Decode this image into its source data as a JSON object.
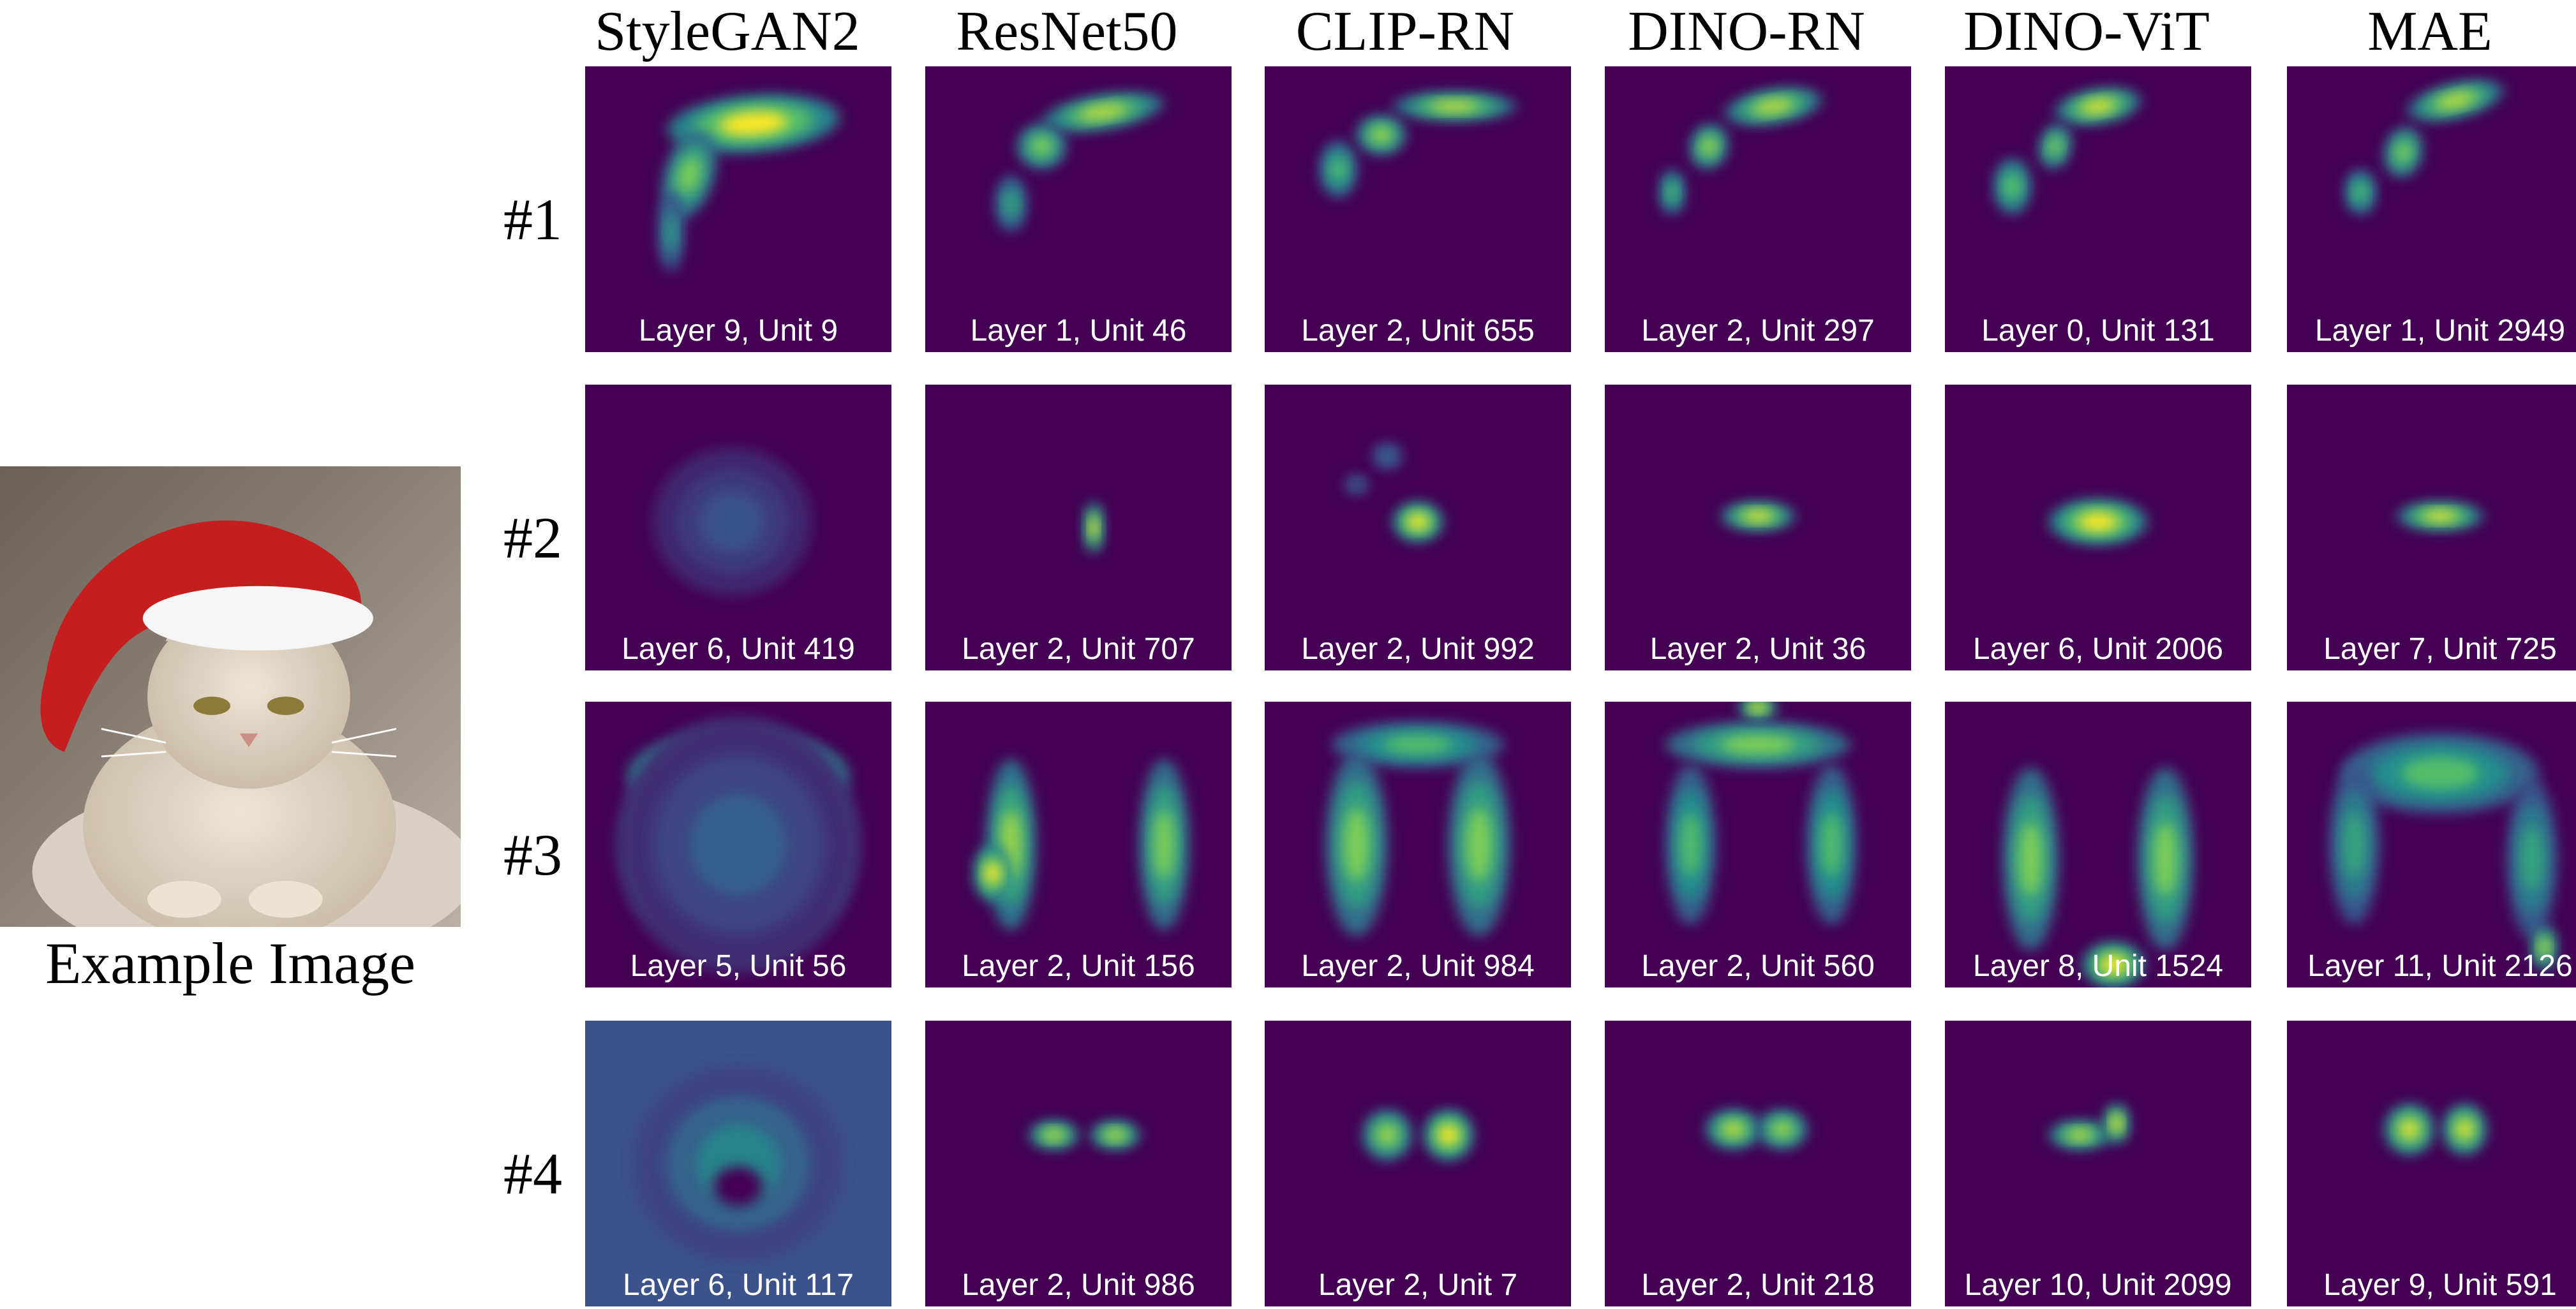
{
  "example": {
    "caption": "Example Image",
    "image_icon": "cat-wearing-santa-hat"
  },
  "columns": [
    "StyleGAN2",
    "ResNet50",
    "CLIP-RN",
    "DINO-RN",
    "DINO-ViT",
    "MAE"
  ],
  "rows": [
    {
      "label": "#1",
      "cells": [
        "Layer 9, Unit 9",
        "Layer 1, Unit 46",
        "Layer 2, Unit 655",
        "Layer 2, Unit 297",
        "Layer 0, Unit 131",
        "Layer 1, Unit 2949"
      ]
    },
    {
      "label": "#2",
      "cells": [
        "Layer 6, Unit 419",
        "Layer 2, Unit 707",
        "Layer 2, Unit 992",
        "Layer 2, Unit 36",
        "Layer 6, Unit 2006",
        "Layer 7, Unit 725"
      ]
    },
    {
      "label": "#3",
      "cells": [
        "Layer 5, Unit 56",
        "Layer 2, Unit 156",
        "Layer 2, Unit 984",
        "Layer 2, Unit 560",
        "Layer 8, Unit 1524",
        "Layer 11, Unit 2126"
      ]
    },
    {
      "label": "#4",
      "cells": [
        "Layer 6, Unit 117",
        "Layer 2, Unit 986",
        "Layer 2, Unit 7",
        "Layer 2, Unit 218",
        "Layer 10, Unit 2099",
        "Layer 9, Unit 591"
      ]
    }
  ],
  "colors": {
    "viridis_low": "#440154",
    "viridis_mid": "#21918c",
    "viridis_high": "#fde725",
    "background": "#ffffff"
  }
}
